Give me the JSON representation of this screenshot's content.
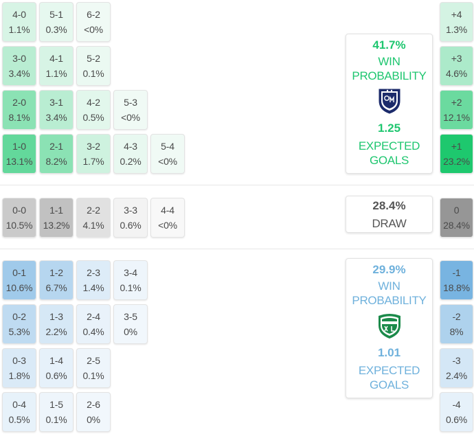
{
  "colors": {
    "home": "#1ec66f",
    "away": "#6fb1dc",
    "draw_text": "#555555"
  },
  "chart_data": {
    "type": "table",
    "home_win": {
      "probability": "41.7%",
      "probability_value": 41.7,
      "win_label": "WIN",
      "probability_label": "PROBABILITY",
      "expected_goals": "1.25",
      "expected_label": "EXPECTED",
      "goals_label": "GOALS",
      "crest_icon": "millonarios-crest-icon",
      "rows": [
        {
          "cells": [
            {
              "score": "4-0",
              "pct": "1.1%",
              "value": 1.1
            },
            {
              "score": "5-1",
              "pct": "0.3%",
              "value": 0.3
            },
            {
              "score": "6-2",
              "pct": "<0%",
              "value": 0
            }
          ]
        },
        {
          "cells": [
            {
              "score": "3-0",
              "pct": "3.4%",
              "value": 3.4
            },
            {
              "score": "4-1",
              "pct": "1.1%",
              "value": 1.1
            },
            {
              "score": "5-2",
              "pct": "0.1%",
              "value": 0.1
            }
          ]
        },
        {
          "cells": [
            {
              "score": "2-0",
              "pct": "8.1%",
              "value": 8.1
            },
            {
              "score": "3-1",
              "pct": "3.4%",
              "value": 3.4
            },
            {
              "score": "4-2",
              "pct": "0.5%",
              "value": 0.5
            },
            {
              "score": "5-3",
              "pct": "<0%",
              "value": 0
            }
          ]
        },
        {
          "cells": [
            {
              "score": "1-0",
              "pct": "13.1%",
              "value": 13.1
            },
            {
              "score": "2-1",
              "pct": "8.2%",
              "value": 8.2
            },
            {
              "score": "3-2",
              "pct": "1.7%",
              "value": 1.7
            },
            {
              "score": "4-3",
              "pct": "0.2%",
              "value": 0.2
            },
            {
              "score": "5-4",
              "pct": "<0%",
              "value": 0
            }
          ]
        }
      ],
      "margins": [
        {
          "label": "+4",
          "pct": "1.3%",
          "value": 1.3
        },
        {
          "label": "+3",
          "pct": "4.6%",
          "value": 4.6
        },
        {
          "label": "+2",
          "pct": "12.1%",
          "value": 12.1
        },
        {
          "label": "+1",
          "pct": "23.2%",
          "value": 23.2
        }
      ]
    },
    "draw": {
      "probability": "28.4%",
      "probability_value": 28.4,
      "label": "DRAW",
      "cells": [
        {
          "score": "0-0",
          "pct": "10.5%",
          "value": 10.5
        },
        {
          "score": "1-1",
          "pct": "13.2%",
          "value": 13.2
        },
        {
          "score": "2-2",
          "pct": "4.1%",
          "value": 4.1
        },
        {
          "score": "3-3",
          "pct": "0.6%",
          "value": 0.6
        },
        {
          "score": "4-4",
          "pct": "<0%",
          "value": 0
        }
      ],
      "margin": {
        "label": "0",
        "pct": "28.4%",
        "value": 28.4
      }
    },
    "away_win": {
      "probability": "29.9%",
      "probability_value": 29.9,
      "win_label": "WIN",
      "probability_label": "PROBABILITY",
      "expected_goals": "1.01",
      "expected_label": "EXPECTED",
      "goals_label": "GOALS",
      "crest_icon": "deportivo-cali-crest-icon",
      "rows": [
        {
          "cells": [
            {
              "score": "0-1",
              "pct": "10.6%",
              "value": 10.6
            },
            {
              "score": "1-2",
              "pct": "6.7%",
              "value": 6.7
            },
            {
              "score": "2-3",
              "pct": "1.4%",
              "value": 1.4
            },
            {
              "score": "3-4",
              "pct": "0.1%",
              "value": 0.1
            }
          ]
        },
        {
          "cells": [
            {
              "score": "0-2",
              "pct": "5.3%",
              "value": 5.3
            },
            {
              "score": "1-3",
              "pct": "2.2%",
              "value": 2.2
            },
            {
              "score": "2-4",
              "pct": "0.4%",
              "value": 0.4
            },
            {
              "score": "3-5",
              "pct": "0%",
              "value": 0
            }
          ]
        },
        {
          "cells": [
            {
              "score": "0-3",
              "pct": "1.8%",
              "value": 1.8
            },
            {
              "score": "1-4",
              "pct": "0.6%",
              "value": 0.6
            },
            {
              "score": "2-5",
              "pct": "0.1%",
              "value": 0.1
            }
          ]
        },
        {
          "cells": [
            {
              "score": "0-4",
              "pct": "0.5%",
              "value": 0.5
            },
            {
              "score": "1-5",
              "pct": "0.1%",
              "value": 0.1
            },
            {
              "score": "2-6",
              "pct": "0%",
              "value": 0
            }
          ]
        }
      ],
      "margins": [
        {
          "label": "-1",
          "pct": "18.8%",
          "value": 18.8
        },
        {
          "label": "-2",
          "pct": "8%",
          "value": 8
        },
        {
          "label": "-3",
          "pct": "2.4%",
          "value": 2.4
        },
        {
          "label": "-4",
          "pct": "0.6%",
          "value": 0.6
        }
      ]
    }
  }
}
